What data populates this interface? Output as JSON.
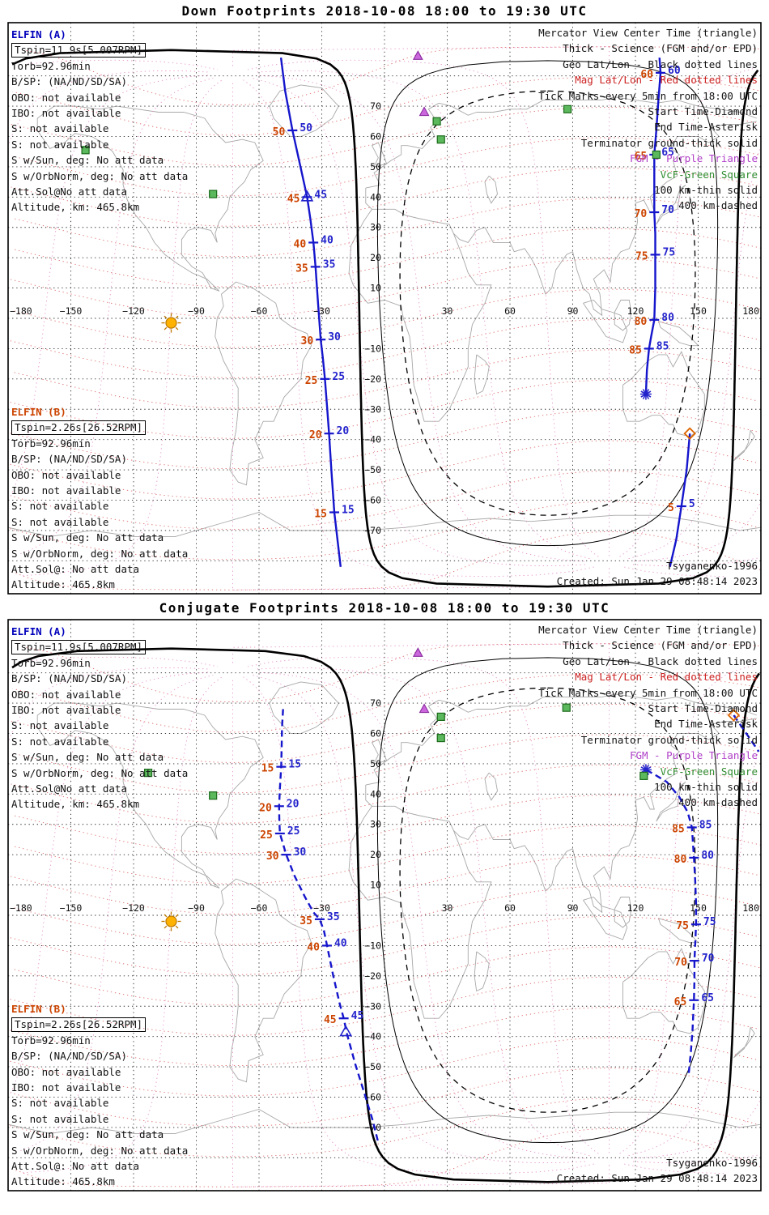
{
  "colors": {
    "track_blue": "#1515cc",
    "tick_blue": "#2323cc",
    "tick_red": "#cc4400",
    "elfin_a_blue": "#0000bb",
    "elfin_b_red": "#cc4400",
    "legend_black": "#111111",
    "legend_red": "#cc2222",
    "legend_purple": "#b040c8",
    "legend_green": "#2f8b2f",
    "mag_parallel": "#dd6a6a",
    "mag_meridian": "#e593c9",
    "geo_grid": "#222222",
    "coast": "#a8a8a8",
    "sun_fill": "#ffb300",
    "sun_stroke": "#bb7700",
    "diamond": "#dd6600",
    "fgm_fill": "#cc66dd",
    "fgm_stroke": "#8a2da0",
    "vcf_fill": "#5cb85c",
    "vcf_stroke": "#1c6b1c",
    "terminator": "#000000"
  },
  "panels": [
    {
      "title": "Down Footprints 2018-10-08 18:00 to 19:30 UTC",
      "elfin_a": {
        "header": "ELFIN (A)",
        "boxed": "Tspin=11.9s[5.007RPM]",
        "lines": [
          "Torb=92.96min",
          "B/SP: (NA/ND/SD/SA)",
          "OBO: not available",
          "IBO: not available",
          "S: not available",
          "S: not available",
          "S w/Sun, deg: No att data",
          "S w/OrbNorm, deg: No att data",
          "Att.Sol@No att data",
          "Altitude, km: 465.8km"
        ]
      },
      "elfin_b": {
        "header": "ELFIN (B)",
        "boxed": "Tspin=2.26s[26.52RPM]",
        "lines": [
          "Torb=92.96min",
          "B/SP: (NA/ND/SD/SA)",
          "OBO: not available",
          "IBO: not available",
          "S: not available",
          "S: not available",
          "S w/Sun, deg: No att data",
          "S w/OrbNorm, deg: No att data",
          "Att.Sol@: No att data",
          "Altitude: 465.8km"
        ]
      },
      "legend": [
        {
          "t": "Mercator View Center Time (triangle)",
          "k": "black"
        },
        {
          "t": "Thick - Science (FGM and/or EPD)",
          "k": "black"
        },
        {
          "t": "Geo Lat/Lon - Black dotted lines",
          "k": "black"
        },
        {
          "t": "Mag Lat/Lon - Red dotted lines",
          "k": "red"
        },
        {
          "t": "Tick Marks every 5min from 18:00 UTC",
          "k": "black"
        },
        {
          "t": "Start Time-Diamond",
          "k": "black"
        },
        {
          "t": "End Time-Asterisk",
          "k": "black"
        },
        {
          "t": "Terminator ground-thick solid",
          "k": "black"
        },
        {
          "t": "FGM - Purple Triangle",
          "k": "purple"
        },
        {
          "t": "VcF-Green Square",
          "k": "green"
        },
        {
          "t": "100 km-thin solid",
          "k": "black"
        },
        {
          "t": "400 km-dashed",
          "k": "black"
        }
      ],
      "footer": [
        "Tsyganenko-1996",
        "Created: Sun Jan 29 08:48:14 2023"
      ]
    },
    {
      "title": "Conjugate Footprints 2018-10-08 18:00 to 19:30 UTC",
      "elfin_a": {
        "header": "ELFIN (A)",
        "boxed": "Tspin=11.9s[5.007RPM]",
        "lines": [
          "Torb=92.96min",
          "B/SP: (NA/ND/SD/SA)",
          "OBO: not available",
          "IBO: not available",
          "S: not available",
          "S: not available",
          "S w/Sun, deg: No att data",
          "S w/OrbNorm, deg: No att data",
          "Att.Sol@No att data",
          "Altitude, km: 465.8km"
        ]
      },
      "elfin_b": {
        "header": "ELFIN (B)",
        "boxed": "Tspin=2.26s[26.52RPM]",
        "lines": [
          "Torb=92.96min",
          "B/SP: (NA/ND/SD/SA)",
          "OBO: not available",
          "IBO: not available",
          "S: not available",
          "S: not available",
          "S w/Sun, deg: No att data",
          "S w/OrbNorm, deg: No att data",
          "Att.Sol@: No att data",
          "Altitude: 465.8km"
        ]
      },
      "legend": [
        {
          "t": "Mercator View Center Time (triangle)",
          "k": "black"
        },
        {
          "t": "Thick - Science (FGM and/or EPD)",
          "k": "black"
        },
        {
          "t": "Geo Lat/Lon - Black dotted lines",
          "k": "black"
        },
        {
          "t": "Mag Lat/Lon - Red dotted lines",
          "k": "red"
        },
        {
          "t": "Tick Marks every 5min from 18:00 UTC",
          "k": "black"
        },
        {
          "t": "Start Time-Diamond",
          "k": "black"
        },
        {
          "t": "End Time-Asterisk",
          "k": "black"
        },
        {
          "t": "Terminator ground-thick solid",
          "k": "black"
        },
        {
          "t": "FGM - Purple Triangle",
          "k": "purple"
        },
        {
          "t": "VcF-Green Square",
          "k": "green"
        },
        {
          "t": "100 km-thin solid",
          "k": "black"
        },
        {
          "t": "400 km-dashed",
          "k": "black"
        }
      ],
      "footer": [
        "Tsyganenko-1996",
        "Created: Sun Jan 29 08:48:14 2023"
      ]
    }
  ],
  "chart_data": [
    {
      "type": "line",
      "title": "Down Footprints 2018-10-08 18:00 to 19:30 UTC",
      "projection": "mercator world map",
      "xlim": [
        -180,
        180
      ],
      "ylim": [
        -85,
        90
      ],
      "lon_ticks": [
        -180,
        -150,
        -120,
        -90,
        -60,
        -30,
        30,
        60,
        90,
        120,
        150,
        180
      ],
      "lat_ticks": [
        70,
        60,
        50,
        40,
        30,
        20,
        10,
        -10,
        -20,
        -30,
        -40,
        -50,
        -60,
        -70
      ],
      "tick_interval_min": 5,
      "sun": {
        "lon": -102,
        "lat": -1.5
      },
      "antisolar": {
        "lon": 78,
        "lat": 5
      },
      "terminator_radii_deg": {
        "ground": 90,
        "km100": 80,
        "km400": 70
      },
      "series": [
        {
          "name": "footprint start segment 18:00-18:08",
          "dash": false,
          "points": [
            [
              146,
              -38
            ],
            [
              144.5,
              -50
            ],
            [
              142,
              -62
            ],
            [
              139.5,
              -73
            ],
            [
              136.5,
              -82
            ]
          ],
          "ticks": [
            {
              "min": 5,
              "lon": 142,
              "lat": -62
            }
          ],
          "markers": [
            {
              "type": "diamond",
              "lon": 146,
              "lat": -38
            }
          ]
        },
        {
          "name": "footprint ascending segment 18:12-18:53",
          "dash": false,
          "points": [
            [
              -21,
              -82
            ],
            [
              -22.5,
              -73
            ],
            [
              -24,
              -64
            ],
            [
              -25.3,
              -51
            ],
            [
              -26.5,
              -38
            ],
            [
              -27.5,
              -29
            ],
            [
              -28.5,
              -20
            ],
            [
              -29.5,
              -13
            ],
            [
              -30.5,
              -7
            ],
            [
              -31.8,
              5
            ],
            [
              -33,
              17
            ],
            [
              -34,
              25
            ],
            [
              -35.5,
              33
            ],
            [
              -37,
              40
            ],
            [
              -40.5,
              51
            ],
            [
              -44,
              62
            ],
            [
              -47.5,
              75
            ],
            [
              -49.5,
              86
            ]
          ],
          "ticks": [
            {
              "min": 15,
              "lon": -24,
              "lat": -64
            },
            {
              "min": 20,
              "lon": -26.5,
              "lat": -38
            },
            {
              "min": 25,
              "lon": -28.5,
              "lat": -20
            },
            {
              "min": 30,
              "lon": -30.5,
              "lat": -7
            },
            {
              "min": 35,
              "lon": -33,
              "lat": 17
            },
            {
              "min": 40,
              "lon": -34,
              "lat": 25
            },
            {
              "min": 45,
              "lon": -37,
              "lat": 40
            },
            {
              "min": 50,
              "lon": -44,
              "lat": 62
            }
          ],
          "markers": [
            {
              "type": "triangle",
              "lon": -37,
              "lat": 40
            }
          ]
        },
        {
          "name": "footprint descending segment 18:57-19:30",
          "dash": false,
          "points": [
            [
              131.5,
              86
            ],
            [
              132,
              81
            ],
            [
              131,
              72
            ],
            [
              130,
              62
            ],
            [
              129,
              54
            ],
            [
              129,
              44
            ],
            [
              129,
              35
            ],
            [
              129.5,
              28
            ],
            [
              129.5,
              21
            ],
            [
              129.5,
              10
            ],
            [
              129,
              -0.5
            ],
            [
              127.5,
              -6
            ],
            [
              126.5,
              -10
            ],
            [
              125.5,
              -17
            ],
            [
              125,
              -25
            ]
          ],
          "ticks": [
            {
              "min": 60,
              "lon": 132,
              "lat": 81
            },
            {
              "min": 65,
              "lon": 129,
              "lat": 54
            },
            {
              "min": 70,
              "lon": 129,
              "lat": 35
            },
            {
              "min": 75,
              "lon": 129.5,
              "lat": 21
            },
            {
              "min": 80,
              "lon": 129,
              "lat": -0.5
            },
            {
              "min": 85,
              "lon": 126.5,
              "lat": -10
            }
          ],
          "markers": [
            {
              "type": "asterisk",
              "lon": 125,
              "lat": -25
            }
          ]
        }
      ],
      "fgm_triangles": [
        [
          16,
          86.5
        ],
        [
          19,
          68
        ]
      ],
      "vcf_squares": [
        [
          -143,
          55.5
        ],
        [
          -82,
          41
        ],
        [
          25,
          65
        ],
        [
          27,
          59
        ],
        [
          87.5,
          69
        ],
        [
          130,
          54
        ]
      ]
    },
    {
      "type": "line",
      "title": "Conjugate Footprints 2018-10-08 18:00 to 19:30 UTC",
      "projection": "mercator world map",
      "xlim": [
        -180,
        180
      ],
      "ylim": [
        -85,
        90
      ],
      "lon_ticks": [
        -180,
        -150,
        -120,
        -90,
        -60,
        -30,
        30,
        60,
        90,
        120,
        150,
        180
      ],
      "lat_ticks": [
        70,
        60,
        50,
        40,
        30,
        20,
        10,
        -10,
        -20,
        -30,
        -40,
        -50,
        -60,
        -70
      ],
      "tick_interval_min": 5,
      "sun": {
        "lon": -102,
        "lat": -2
      },
      "antisolar": {
        "lon": 78,
        "lat": 5
      },
      "terminator_radii_deg": {
        "ground": 90,
        "km100": 80,
        "km400": 70
      },
      "series": [
        {
          "name": "conjugate left segment 18:12-18:55",
          "dash": true,
          "points": [
            [
              -48.5,
              68
            ],
            [
              -49,
              62
            ],
            [
              -49.2,
              55
            ],
            [
              -49.4,
              49
            ],
            [
              -50,
              42
            ],
            [
              -50.4,
              36
            ],
            [
              -50.3,
              31
            ],
            [
              -50,
              27
            ],
            [
              -48.5,
              23.5
            ],
            [
              -47,
              20
            ],
            [
              -43,
              13
            ],
            [
              -38,
              6
            ],
            [
              -34,
              1
            ],
            [
              -31,
              -1.3
            ],
            [
              -29,
              -5
            ],
            [
              -27.5,
              -10
            ],
            [
              -24.5,
              -20
            ],
            [
              -21.5,
              -29
            ],
            [
              -19.5,
              -34
            ],
            [
              -18,
              -39
            ],
            [
              -14,
              -49
            ],
            [
              -9.5,
              -59
            ],
            [
              -5.5,
              -68
            ],
            [
              -3,
              -75
            ]
          ],
          "ticks": [
            {
              "min": 15,
              "lon": -49.4,
              "lat": 49
            },
            {
              "min": 20,
              "lon": -50.4,
              "lat": 36
            },
            {
              "min": 25,
              "lon": -50,
              "lat": 27
            },
            {
              "min": 30,
              "lon": -47,
              "lat": 20
            },
            {
              "min": 35,
              "lon": -31,
              "lat": -1.3
            },
            {
              "min": 40,
              "lon": -27.5,
              "lat": -10
            },
            {
              "min": 45,
              "lon": -19.5,
              "lat": -34
            }
          ],
          "markers": [
            {
              "type": "triangle",
              "lon": -18.5,
              "lat": -38.5
            }
          ]
        },
        {
          "name": "conjugate right segment 19:00-19:30",
          "dash": true,
          "points": [
            [
              145.5,
              -52
            ],
            [
              146.5,
              -45
            ],
            [
              147.3,
              -38
            ],
            [
              148,
              -28
            ],
            [
              148.2,
              -21
            ],
            [
              148.2,
              -15
            ],
            [
              148.6,
              -9
            ],
            [
              149,
              -3
            ],
            [
              149,
              4
            ],
            [
              148.6,
              11
            ],
            [
              148,
              19
            ],
            [
              147.5,
              24
            ],
            [
              147,
              29
            ],
            [
              145,
              34
            ],
            [
              141,
              39
            ],
            [
              135,
              44
            ],
            [
              129,
              46.5
            ],
            [
              125,
              48
            ]
          ],
          "ticks": [
            {
              "min": 65,
              "lon": 148,
              "lat": -28
            },
            {
              "min": 70,
              "lon": 148.2,
              "lat": -15
            },
            {
              "min": 75,
              "lon": 149,
              "lat": -3
            },
            {
              "min": 80,
              "lon": 148,
              "lat": 19
            },
            {
              "min": 85,
              "lon": 147,
              "lat": 29
            }
          ],
          "markers": [
            {
              "type": "asterisk",
              "lon": 125,
              "lat": 48
            }
          ]
        },
        {
          "name": "conjugate start stub 18:00",
          "dash": true,
          "points": [
            [
              167,
              66
            ],
            [
              171,
              62
            ],
            [
              175,
              58
            ],
            [
              179,
              54
            ]
          ],
          "ticks": [],
          "markers": [
            {
              "type": "diamond",
              "lon": 167,
              "lat": 66
            }
          ]
        }
      ],
      "fgm_triangles": [
        [
          16,
          86.5
        ],
        [
          19,
          68
        ]
      ],
      "vcf_squares": [
        [
          -113,
          47
        ],
        [
          -82,
          39.5
        ],
        [
          27,
          65.5
        ],
        [
          27,
          58.5
        ],
        [
          87,
          68.5
        ],
        [
          124,
          46
        ]
      ]
    }
  ]
}
